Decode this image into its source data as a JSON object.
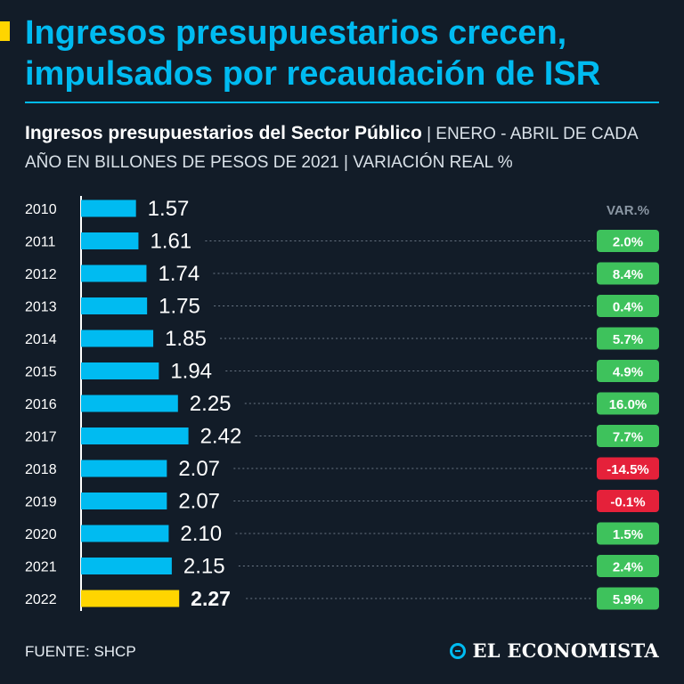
{
  "headline": {
    "line1": "Ingresos presupuestarios crecen,",
    "line2": "impulsados por recaudación de ISR"
  },
  "subtitle": {
    "bold": "Ingresos presupuestarios del Sector Público",
    "rest": " | ENERO - ABRIL DE CADA AÑO EN BILLONES DE PESOS DE 2021 | VARIACIÓN REAL %"
  },
  "chart_data": {
    "type": "bar",
    "orientation": "horizontal",
    "title": "Ingresos presupuestarios del Sector Público",
    "units": "billones de pesos de 2021",
    "categories": [
      "2010",
      "2011",
      "2012",
      "2013",
      "2014",
      "2015",
      "2016",
      "2017",
      "2018",
      "2019",
      "2020",
      "2021",
      "2022"
    ],
    "values": [
      1.57,
      1.61,
      1.74,
      1.75,
      1.85,
      1.94,
      2.25,
      2.42,
      2.07,
      2.07,
      2.1,
      2.15,
      2.27
    ],
    "value_labels": [
      "1.57",
      "1.61",
      "1.74",
      "1.75",
      "1.85",
      "1.94",
      "2.25",
      "2.42",
      "2.07",
      "2.07",
      "2.10",
      "2.15",
      "2.27"
    ],
    "variation_header": "VAR.%",
    "variation": [
      null,
      2.0,
      8.4,
      0.4,
      5.7,
      4.9,
      16.0,
      7.7,
      -14.5,
      -0.1,
      1.5,
      2.4,
      5.9
    ],
    "variation_labels": [
      "",
      "2.0%",
      "8.4%",
      "0.4%",
      "5.7%",
      "4.9%",
      "16.0%",
      "7.7%",
      "-14.5%",
      "-0.1%",
      "1.5%",
      "2.4%",
      "5.9%"
    ],
    "highlight_category": "2022",
    "colors": {
      "bar": "#00bbf1",
      "highlight": "#ffd500",
      "positive": "#3ec25c",
      "negative": "#e5213a"
    }
  },
  "footer": {
    "source": "FUENTE: SHCP",
    "brand": "EL ECONOMISTA"
  }
}
